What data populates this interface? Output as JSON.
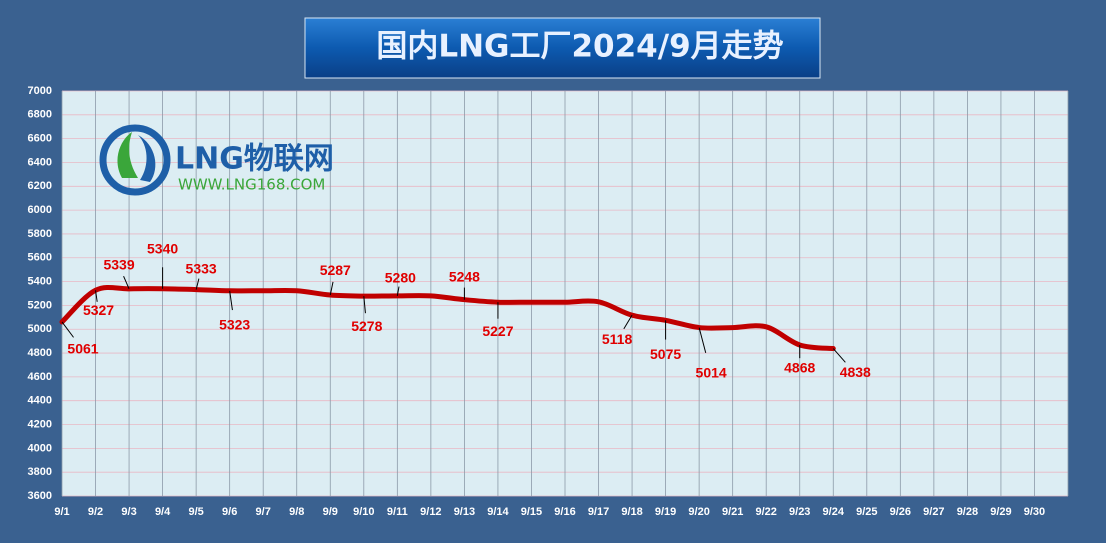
{
  "chart_data": {
    "type": "line",
    "title": "国内LNG工厂2024/9月走势",
    "watermark": {
      "name": "LNG物联网",
      "url": "WWW.LNG168.COM"
    },
    "categories": [
      "9/1",
      "9/2",
      "9/3",
      "9/4",
      "9/5",
      "9/6",
      "9/7",
      "9/8",
      "9/9",
      "9/10",
      "9/11",
      "9/12",
      "9/13",
      "9/14",
      "9/15",
      "9/16",
      "9/17",
      "9/18",
      "9/19",
      "9/20",
      "9/21",
      "9/22",
      "9/23",
      "9/24",
      "9/25",
      "9/26",
      "9/27",
      "9/28",
      "9/29",
      "9/30"
    ],
    "series": [
      {
        "name": "LNG",
        "color": "#c00000",
        "values": [
          5061,
          5327,
          5339,
          5340,
          5333,
          5323,
          5323,
          5323,
          5287,
          5278,
          5280,
          5280,
          5248,
          5227,
          5227,
          5227,
          5230,
          5118,
          5075,
          5014,
          5014,
          5020,
          4868,
          4838,
          null,
          null,
          null,
          null,
          null,
          null
        ],
        "value_labels": [
          "5061",
          "5327",
          "5339",
          "5340",
          "5333",
          "5323",
          null,
          null,
          "5287",
          "5278",
          "5280",
          null,
          "5248",
          "5227",
          null,
          null,
          null,
          "5118",
          "5075",
          "5014",
          null,
          null,
          "4868",
          "4838",
          null,
          null,
          null,
          null,
          null,
          null
        ]
      }
    ],
    "ylim": [
      3600,
      7000
    ],
    "yticks": [
      3600,
      3800,
      4000,
      4200,
      4400,
      4600,
      4800,
      5000,
      5200,
      5400,
      5600,
      5800,
      6000,
      6200,
      6400,
      6600,
      6800,
      7000
    ],
    "grid": true
  }
}
